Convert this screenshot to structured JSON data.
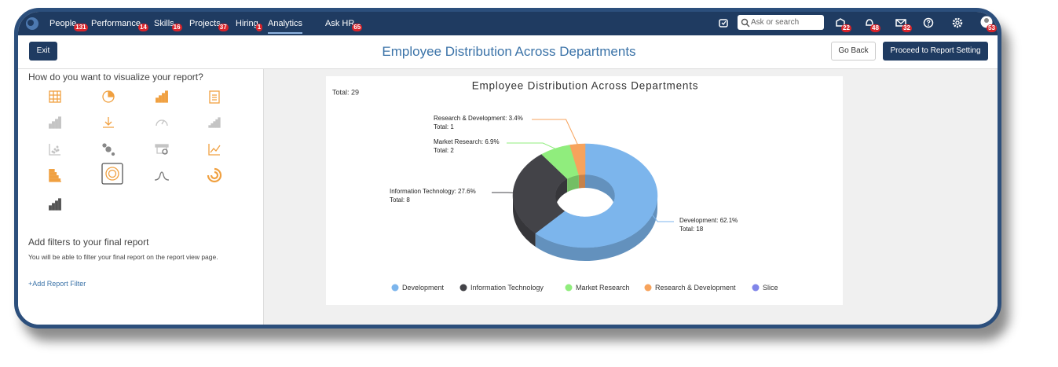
{
  "nav": {
    "items": [
      {
        "label": "People",
        "badge": 131
      },
      {
        "label": "Performance",
        "badge": 14
      },
      {
        "label": "Skills",
        "badge": 16
      },
      {
        "label": "Projects",
        "badge": 37
      },
      {
        "label": "Hiring",
        "badge": 1
      },
      {
        "label": "Analytics",
        "active": true
      },
      {
        "label": "Ask HR",
        "badge": 65
      }
    ],
    "search_placeholder": "Ask or search",
    "notifications": [
      22,
      48,
      32,
      53
    ]
  },
  "toolbar": {
    "exit": "Exit",
    "title": "Employee Distribution Across Departments",
    "go_back": "Go Back",
    "proceed": "Proceed to Report Setting"
  },
  "sidebar": {
    "visualize_heading": "How do you want to visualize your report?",
    "filters_heading": "Add filters to your final report",
    "filters_description": "You will be able to filter your final report on the report view page.",
    "add_filter": "+Add Report Filter"
  },
  "chart_data": {
    "type": "pie",
    "donut": true,
    "three_d": true,
    "title": "Employee Distribution Across Departments",
    "annotation": "Total: 29",
    "categories": [
      "Development",
      "Information Technology",
      "Market Research",
      "Research & Development",
      "Slice"
    ],
    "values": [
      62.1,
      27.6,
      6.9,
      3.4,
      null
    ],
    "value_labels": [
      "Development: 62.1%",
      "Information Technology: 27.6%",
      "Market Research: 6.9%",
      "Research & Development: 3.4%",
      null
    ],
    "counts": [
      18,
      8,
      2,
      1,
      null
    ],
    "count_labels": [
      "Total: 18",
      "Total: 8",
      "Total: 2",
      "Total: 1",
      null
    ],
    "colors": [
      "#7cb5ec",
      "#434348",
      "#90ed7d",
      "#f7a35c",
      "#8085e9"
    ],
    "legend": "bottom"
  }
}
